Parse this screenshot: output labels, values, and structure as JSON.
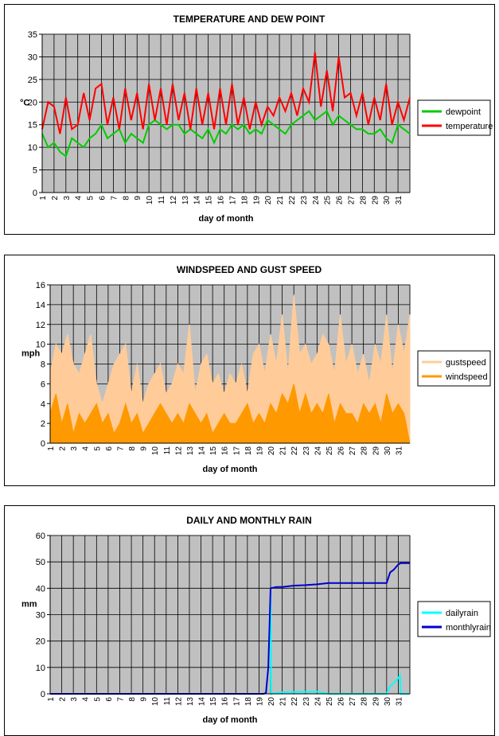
{
  "chart_data": [
    {
      "type": "line",
      "title": "TEMPERATURE AND DEW POINT",
      "xlabel": "day of month",
      "ylabel": "°C",
      "ylim": [
        0,
        35
      ],
      "yticks": [
        0,
        5,
        10,
        15,
        20,
        25,
        30,
        35
      ],
      "xticks": [
        "1",
        "2",
        "3",
        "4",
        "5",
        "6",
        "7",
        "8",
        "9",
        "10",
        "11",
        "12",
        "13",
        "14",
        "15",
        "16",
        "17",
        "18",
        "19",
        "20",
        "21",
        "22",
        "23",
        "24",
        "25",
        "26",
        "27",
        "28",
        "29",
        "30",
        "31"
      ],
      "legend": "right",
      "series": [
        {
          "name": "dewpoint",
          "color": "#00cc00",
          "x": [
            1,
            1.5,
            2,
            2.5,
            3,
            3.5,
            4,
            4.5,
            5,
            5.5,
            6,
            6.5,
            7,
            7.5,
            8,
            8.5,
            9,
            9.5,
            10,
            10.5,
            11,
            11.5,
            12,
            12.5,
            13,
            13.5,
            14,
            14.5,
            15,
            15.5,
            16,
            16.5,
            17,
            17.5,
            18,
            18.5,
            19,
            19.5,
            20,
            20.5,
            21,
            21.5,
            22,
            22.5,
            23,
            23.5,
            24,
            24.5,
            25,
            25.5,
            26,
            26.5,
            27,
            27.5,
            28,
            28.5,
            29,
            29.5,
            30,
            30.5,
            31,
            31.5,
            32
          ],
          "values": [
            13,
            10,
            11,
            9,
            8,
            12,
            11,
            10,
            12,
            13,
            15,
            12,
            13,
            14,
            11,
            13,
            12,
            11,
            15,
            16,
            15,
            14,
            15,
            15,
            13,
            14,
            13,
            12,
            14,
            11,
            14,
            13,
            15,
            14,
            15,
            13,
            14,
            13,
            16,
            15,
            14,
            13,
            15,
            16,
            17,
            18,
            16,
            17,
            18,
            15,
            17,
            16,
            15,
            14,
            14,
            13,
            13,
            14,
            12,
            11,
            15,
            14,
            13
          ]
        },
        {
          "name": "temperature",
          "color": "#ff0000",
          "x": [
            1,
            1.5,
            2,
            2.5,
            3,
            3.5,
            4,
            4.5,
            5,
            5.5,
            6,
            6.5,
            7,
            7.5,
            8,
            8.5,
            9,
            9.5,
            10,
            10.5,
            11,
            11.5,
            12,
            12.5,
            13,
            13.5,
            14,
            14.5,
            15,
            15.5,
            16,
            16.5,
            17,
            17.5,
            18,
            18.5,
            19,
            19.5,
            20,
            20.5,
            21,
            21.5,
            22,
            22.5,
            23,
            23.5,
            24,
            24.5,
            25,
            25.5,
            26,
            26.5,
            27,
            27.5,
            28,
            28.5,
            29,
            29.5,
            30,
            30.5,
            31,
            31.5,
            32
          ],
          "values": [
            14,
            20,
            19,
            13,
            21,
            14,
            15,
            22,
            16,
            23,
            24,
            15,
            21,
            14,
            23,
            16,
            22,
            14,
            24,
            16,
            23,
            15,
            24,
            16,
            22,
            14,
            23,
            15,
            22,
            14,
            23,
            15,
            24,
            15,
            21,
            14,
            20,
            15,
            19,
            17,
            21,
            18,
            22,
            17,
            23,
            20,
            31,
            19,
            27,
            18,
            30,
            21,
            22,
            17,
            22,
            15,
            21,
            16,
            24,
            15,
            20,
            16,
            21
          ]
        }
      ]
    },
    {
      "type": "area",
      "title": "WINDSPEED AND GUST SPEED",
      "xlabel": "day of month",
      "ylabel": "mph",
      "ylim": [
        0,
        16
      ],
      "yticks": [
        0,
        2,
        4,
        6,
        8,
        10,
        12,
        14,
        16
      ],
      "xticks": [
        "1",
        "2",
        "3",
        "4",
        "5",
        "6",
        "7",
        "8",
        "9",
        "10",
        "11",
        "12",
        "13",
        "14",
        "15",
        "16",
        "17",
        "18",
        "19",
        "20",
        "21",
        "22",
        "23",
        "24",
        "25",
        "26",
        "27",
        "28",
        "29",
        "30",
        "31"
      ],
      "legend": "right",
      "series": [
        {
          "name": "gustspeed",
          "color": "#ffcc99",
          "x": [
            1,
            1.5,
            2,
            2.5,
            3,
            3.5,
            4,
            4.5,
            5,
            5.5,
            6,
            6.5,
            7,
            7.5,
            8,
            8.5,
            9,
            9.5,
            10,
            10.5,
            11,
            11.5,
            12,
            12.5,
            13,
            13.5,
            14,
            14.5,
            15,
            15.5,
            16,
            16.5,
            17,
            17.5,
            18,
            18.5,
            19,
            19.5,
            20,
            20.5,
            21,
            21.5,
            22,
            22.5,
            23,
            23.5,
            24,
            24.5,
            25,
            25.5,
            26,
            26.5,
            27,
            27.5,
            28,
            28.5,
            29,
            29.5,
            30,
            30.5,
            31,
            31.5,
            32
          ],
          "values": [
            7,
            10,
            9,
            11,
            8,
            7,
            9,
            11,
            6,
            4,
            6,
            8,
            9,
            10,
            5,
            8,
            4,
            6,
            7,
            8,
            5,
            6,
            8,
            7,
            12,
            5,
            8,
            9,
            6,
            7,
            5,
            7,
            6,
            8,
            5,
            9,
            10,
            7,
            11,
            8,
            13,
            7,
            15,
            9,
            10,
            8,
            9,
            11,
            10,
            7,
            13,
            8,
            10,
            7,
            9,
            6,
            10,
            8,
            13,
            7,
            12,
            9,
            13
          ]
        },
        {
          "name": "windspeed",
          "color": "#ff9900",
          "x": [
            1,
            1.5,
            2,
            2.5,
            3,
            3.5,
            4,
            4.5,
            5,
            5.5,
            6,
            6.5,
            7,
            7.5,
            8,
            8.5,
            9,
            9.5,
            10,
            10.5,
            11,
            11.5,
            12,
            12.5,
            13,
            13.5,
            14,
            14.5,
            15,
            15.5,
            16,
            16.5,
            17,
            17.5,
            18,
            18.5,
            19,
            19.5,
            20,
            20.5,
            21,
            21.5,
            22,
            22.5,
            23,
            23.5,
            24,
            24.5,
            25,
            25.5,
            26,
            26.5,
            27,
            27.5,
            28,
            28.5,
            29,
            29.5,
            30,
            30.5,
            31,
            31.5,
            32
          ],
          "values": [
            3,
            5,
            2,
            4,
            1,
            3,
            2,
            3,
            4,
            2,
            3,
            1,
            2,
            4,
            2,
            3,
            1,
            2,
            3,
            4,
            3,
            2,
            3,
            2,
            4,
            3,
            2,
            3,
            1,
            2,
            3,
            2,
            2,
            3,
            4,
            2,
            3,
            2,
            4,
            3,
            5,
            4,
            6,
            3,
            5,
            3,
            4,
            3,
            5,
            2,
            4,
            3,
            3,
            2,
            4,
            3,
            4,
            2,
            5,
            3,
            4,
            3,
            0
          ]
        }
      ]
    },
    {
      "type": "line",
      "title": "DAILY AND MONTHLY RAIN",
      "xlabel": "day of month",
      "ylabel": "mm",
      "ylim": [
        0,
        60
      ],
      "yticks": [
        0,
        10,
        20,
        30,
        40,
        50,
        60
      ],
      "xticks": [
        "1",
        "2",
        "3",
        "4",
        "5",
        "6",
        "7",
        "8",
        "9",
        "10",
        "11",
        "12",
        "13",
        "14",
        "15",
        "16",
        "17",
        "18",
        "19",
        "20",
        "21",
        "22",
        "23",
        "24",
        "25",
        "26",
        "27",
        "28",
        "29",
        "30",
        "31"
      ],
      "legend": "right",
      "series": [
        {
          "name": "dailyrain",
          "color": "#00ffff",
          "x": [
            1,
            19.4,
            19.6,
            19.8,
            19.9,
            20.0,
            20.05,
            21,
            24,
            25,
            27,
            30,
            30.3,
            30.6,
            31,
            31.15,
            31.2,
            32
          ],
          "values": [
            0,
            0,
            0.3,
            10,
            25,
            39,
            0,
            0.6,
            0.8,
            0,
            0,
            0,
            3,
            4,
            6,
            7,
            0,
            0
          ]
        },
        {
          "name": "monthlyrain",
          "color": "#0000cc",
          "x": [
            1,
            19.4,
            19.6,
            19.8,
            19.9,
            20.0,
            20.5,
            21,
            22,
            23,
            24,
            25,
            26,
            27,
            28,
            29,
            30,
            30.3,
            30.6,
            31,
            31.2,
            32
          ],
          "values": [
            0,
            0,
            0.3,
            10,
            25,
            40,
            40.5,
            40.5,
            41,
            41.2,
            41.5,
            42,
            42,
            42,
            42,
            42,
            42,
            46,
            47,
            49,
            49.5,
            49.5
          ]
        }
      ]
    }
  ]
}
